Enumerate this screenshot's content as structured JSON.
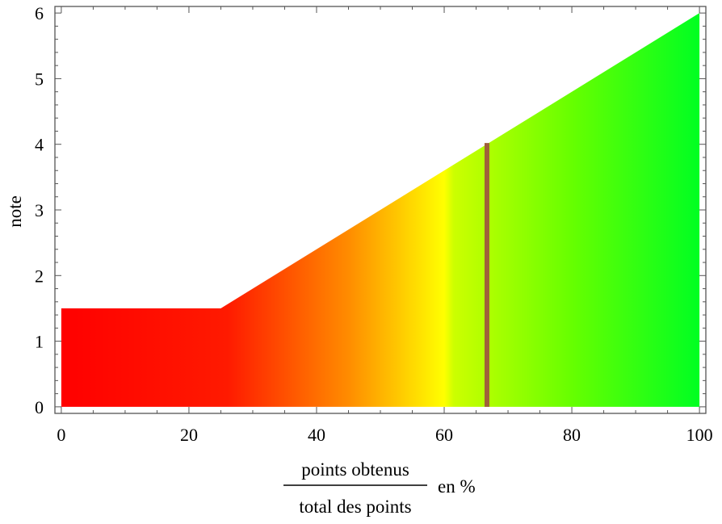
{
  "chart_data": {
    "type": "area",
    "title": "",
    "xlabel": {
      "numerator": "points obtenus",
      "denominator": "total des points",
      "suffix": "en %"
    },
    "ylabel": "note",
    "xlim": [
      -1,
      101
    ],
    "ylim": [
      -0.1,
      6.1
    ],
    "x_ticks": [
      0,
      20,
      40,
      60,
      80,
      100
    ],
    "x_tick_labels": [
      "0",
      "20",
      "40",
      "60",
      "80",
      "100"
    ],
    "y_ticks": [
      0,
      1,
      2,
      3,
      4,
      5,
      6
    ],
    "y_tick_labels": [
      "0",
      "1",
      "2",
      "3",
      "4",
      "5",
      "6"
    ],
    "grid": false,
    "series": [
      {
        "points": [
          [
            0,
            1.5
          ],
          [
            25,
            1.5
          ],
          [
            100,
            6
          ]
        ],
        "baseline": 0,
        "gradient": [
          {
            "x": 0,
            "color": "#ff0000"
          },
          {
            "x": 26,
            "color": "#ff1a00"
          },
          {
            "x": 45,
            "color": "#ff8c00"
          },
          {
            "x": 60,
            "color": "#ffff00"
          },
          {
            "x": 61.5,
            "color": "#ccff00"
          },
          {
            "x": 80,
            "color": "#66ff00"
          },
          {
            "x": 100,
            "color": "#00ff22"
          }
        ]
      }
    ],
    "marker_line": {
      "x": 66.7,
      "y_from": 0,
      "y_to": 4.02,
      "color": "#a0603a"
    },
    "frame_color": "#555555"
  }
}
